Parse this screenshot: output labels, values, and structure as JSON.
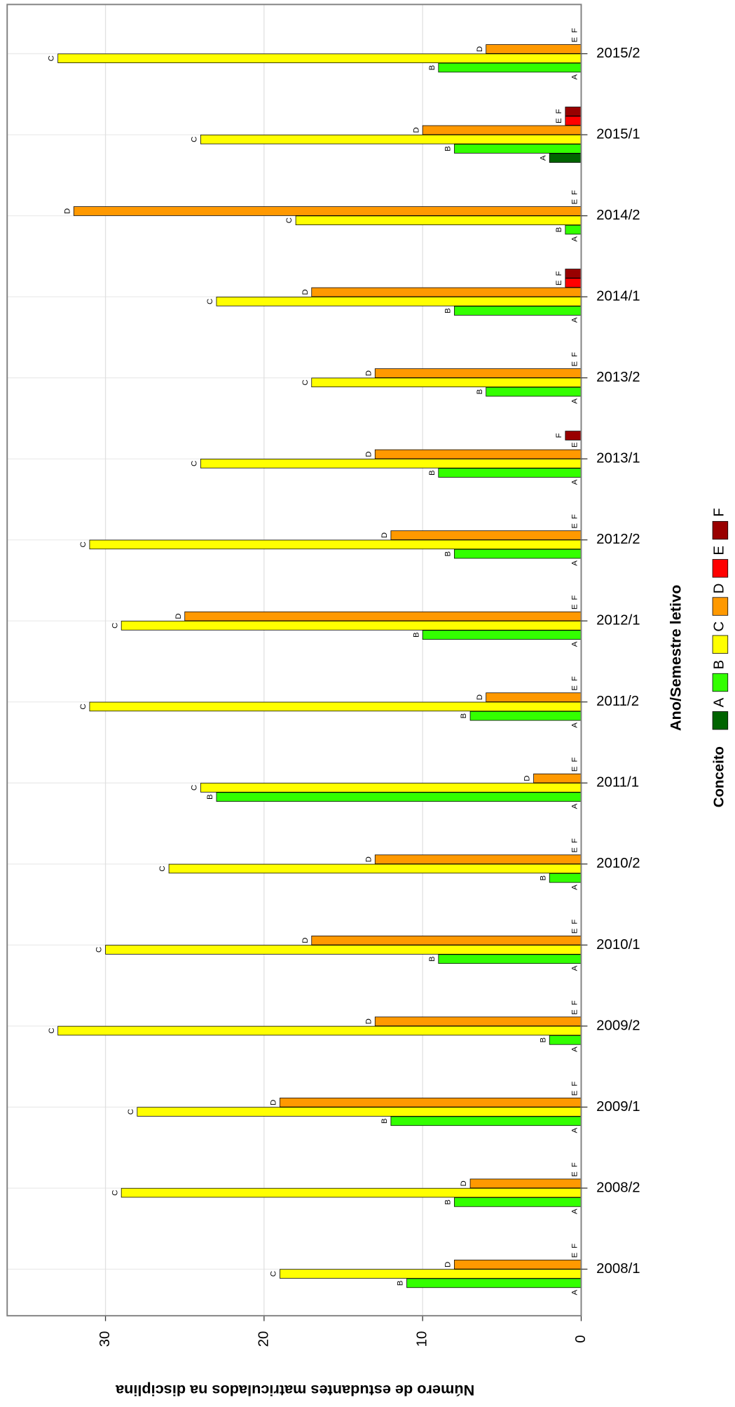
{
  "chart_data": {
    "type": "bar",
    "horizontal": true,
    "xlabel": "Ano/Semestre letivo",
    "ylabel": "Número de estudantes matriculados na disciplina",
    "legend_title": "Conceito",
    "categories": [
      "2008/1",
      "2008/2",
      "2009/1",
      "2009/2",
      "2010/1",
      "2010/2",
      "2011/1",
      "2011/2",
      "2012/1",
      "2012/2",
      "2013/1",
      "2013/2",
      "2014/1",
      "2014/2",
      "2015/1",
      "2015/2"
    ],
    "series": [
      {
        "name": "A",
        "color": "#006400",
        "values": [
          0,
          0,
          0,
          0,
          0,
          0,
          0,
          0,
          0,
          0,
          0,
          0,
          0,
          0,
          2,
          0
        ]
      },
      {
        "name": "B",
        "color": "#33ff00",
        "values": [
          11,
          8,
          12,
          2,
          9,
          2,
          23,
          7,
          10,
          8,
          9,
          6,
          8,
          1,
          8,
          9
        ]
      },
      {
        "name": "C",
        "color": "#ffff00",
        "values": [
          19,
          29,
          28,
          33,
          30,
          26,
          24,
          31,
          29,
          31,
          24,
          17,
          23,
          18,
          24,
          33
        ]
      },
      {
        "name": "D",
        "color": "#ff9900",
        "values": [
          8,
          7,
          19,
          13,
          17,
          13,
          3,
          6,
          25,
          12,
          13,
          13,
          17,
          32,
          10,
          6
        ]
      },
      {
        "name": "E",
        "color": "#ff0000",
        "values": [
          0,
          0,
          0,
          0,
          0,
          0,
          0,
          0,
          0,
          0,
          0,
          0,
          1,
          0,
          1,
          0
        ]
      },
      {
        "name": "F",
        "color": "#990000",
        "values": [
          0,
          0,
          0,
          0,
          0,
          0,
          0,
          0,
          0,
          0,
          1,
          0,
          1,
          0,
          1,
          0
        ]
      }
    ],
    "ylim": [
      0,
      36.2
    ],
    "yticks": [
      0,
      10,
      20,
      30
    ],
    "grid": true
  }
}
